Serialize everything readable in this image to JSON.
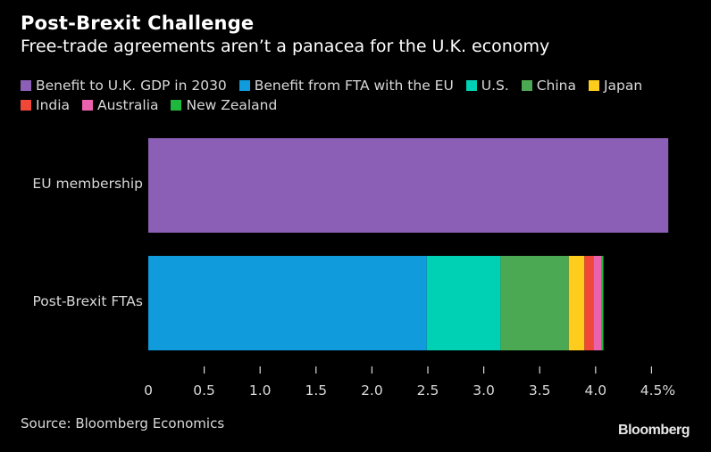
{
  "title": "Post-Brexit Challenge",
  "subtitle": "Free-trade agreements aren’t a panacea for the U.K. economy",
  "legend": {
    "row1": [
      {
        "label": "Benefit to U.K. GDP in 2030",
        "color": "#8c5fb6"
      },
      {
        "label": "Benefit from FTA with the EU",
        "color": "#0f9bdc"
      },
      {
        "label": "U.S.",
        "color": "#00d1b4"
      },
      {
        "label": "China",
        "color": "#4ca953"
      },
      {
        "label": "Japan",
        "color": "#fdcc1c"
      }
    ],
    "row2": [
      {
        "label": "India",
        "color": "#ef4738"
      },
      {
        "label": "Australia",
        "color": "#ea62ae"
      },
      {
        "label": "New Zealand",
        "color": "#1eb83e"
      }
    ]
  },
  "chart_data": {
    "type": "bar",
    "orientation": "horizontal",
    "stacked": true,
    "title": "Post-Brexit Challenge",
    "subtitle": "Free-trade agreements aren’t a panacea for the U.K. economy",
    "categories": [
      "EU membership",
      "Post-Brexit FTAs"
    ],
    "series": [
      {
        "name": "Benefit to U.K. GDP in 2030",
        "color": "#8c5fb6",
        "values": [
          4.65,
          0
        ]
      },
      {
        "name": "Benefit from FTA with the EU",
        "color": "#0f9bdc",
        "values": [
          0,
          2.49
        ]
      },
      {
        "name": "U.S.",
        "color": "#00d1b4",
        "values": [
          0,
          0.66
        ]
      },
      {
        "name": "China",
        "color": "#4ca953",
        "values": [
          0,
          0.61
        ]
      },
      {
        "name": "Japan",
        "color": "#fdcc1c",
        "values": [
          0,
          0.14
        ]
      },
      {
        "name": "India",
        "color": "#ef4738",
        "values": [
          0,
          0.08
        ]
      },
      {
        "name": "Australia",
        "color": "#ea62ae",
        "values": [
          0,
          0.075
        ]
      },
      {
        "name": "New Zealand",
        "color": "#1eb83e",
        "values": [
          0,
          0.015
        ]
      }
    ],
    "xlabel": "",
    "ylabel": "",
    "xlim": [
      0,
      4.65
    ],
    "xticks": [
      0,
      0.5,
      1.0,
      1.5,
      2.0,
      2.5,
      3.0,
      3.5,
      4.0,
      4.5
    ],
    "xtick_labels": [
      "0",
      "0.5",
      "1.0",
      "1.5",
      "2.0",
      "2.5",
      "3.0",
      "3.5",
      "4.0",
      "4.5%"
    ],
    "grid": false,
    "legend_position": "top"
  },
  "source": "Source: Bloomberg Economics",
  "brand": "Bloomberg"
}
